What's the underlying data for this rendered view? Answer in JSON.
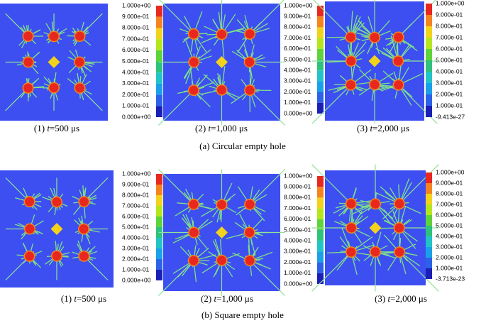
{
  "figure": {
    "rows": [
      {
        "panels": [
          {
            "colorbar": [
              "1.000e+00",
              "9.000e-01",
              "8.000e-01",
              "7.000e-01",
              "6.000e-01",
              "5.000e-01",
              "4.000e-01",
              "3.000e-01",
              "2.000e-01",
              "1.000e-01",
              "0.000e+00"
            ],
            "caption": {
              "index": "(1)",
              "variable": "t",
              "value": "=500 μs"
            }
          },
          {
            "colorbar": [
              "1.000e+00",
              "9.000e-01",
              "8.000e-01",
              "7.000e-01",
              "6.000e-01",
              "5.000e-01",
              "4.000e-01",
              "3.000e-01",
              "2.000e-01",
              "1.000e-01",
              "0.000e+00"
            ],
            "caption": {
              "index": "(2)",
              "variable": "t",
              "value": "=1,000 μs"
            }
          },
          {
            "colorbar": [
              "1.000e+00",
              "9.000e-01",
              "8.000e-01",
              "7.000e-01",
              "6.000e-01",
              "5.000e-01",
              "4.000e-01",
              "3.000e-01",
              "2.000e-01",
              "1.000e-01",
              "-9.413e-27"
            ],
            "caption": {
              "index": "(3)",
              "variable": "t",
              "value": "=2,000 μs"
            }
          }
        ],
        "subtitle": "(a) Circular empty hole"
      },
      {
        "panels": [
          {
            "colorbar": [
              "1.000e+00",
              "9.000e-01",
              "8.000e-01",
              "7.000e-01",
              "6.000e-01",
              "5.000e-01",
              "4.000e-01",
              "3.000e-01",
              "2.000e-01",
              "1.000e-01",
              "0.000e+00"
            ],
            "caption": {
              "index": "(1)",
              "variable": "t",
              "value": "=500 μs"
            }
          },
          {
            "colorbar": [
              "1.000e+00",
              "9.000e-01",
              "8.000e-01",
              "7.000e-01",
              "6.000e-01",
              "5.000e-01",
              "4.000e-01",
              "3.000e-01",
              "2.000e-01",
              "1.000e-01",
              "0.000e+00"
            ],
            "caption": {
              "index": "(2)",
              "variable": "t",
              "value": "=1,000 μs"
            }
          },
          {
            "colorbar": [
              "1.000e+00",
              "9.000e-01",
              "8.000e-01",
              "7.000e-01",
              "6.000e-01",
              "5.000e-01",
              "4.000e-01",
              "3.000e-01",
              "2.000e-01",
              "1.000e-01",
              "-3.713e-23"
            ],
            "caption": {
              "index": "(3)",
              "variable": "t",
              "value": "=2,000 μs"
            }
          }
        ],
        "subtitle": "(b) Square empty hole"
      }
    ]
  }
}
